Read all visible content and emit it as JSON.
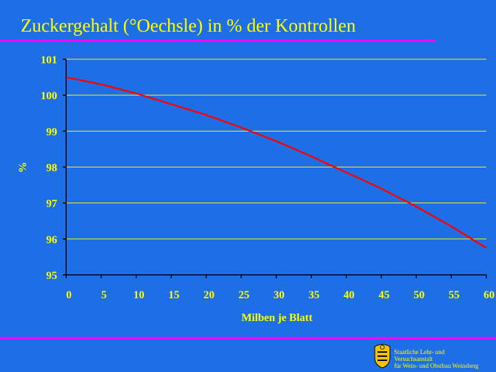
{
  "slide": {
    "title": "Zuckergehalt (°Oechsle) in % der Kontrollen"
  },
  "footer": {
    "line1": "Staatliche Lehr- und",
    "line2": "Versuchsanstalt",
    "line3": "für Wein- und Obstbau Weinsberg"
  },
  "colors": {
    "background": "#1e6fe6",
    "text": "#ffff00",
    "rule": "#ff00ff",
    "line": "#ff0000",
    "axis": "#000000"
  },
  "chart_data": {
    "type": "line",
    "title": "Zuckergehalt (°Oechsle) in % der Kontrollen",
    "xlabel": "Milben je Blatt",
    "ylabel": "%",
    "xlim": [
      0,
      60
    ],
    "ylim": [
      95,
      101
    ],
    "xticks": [
      0,
      5,
      10,
      15,
      20,
      25,
      30,
      35,
      40,
      45,
      50,
      55,
      60
    ],
    "yticks": [
      95,
      96,
      97,
      98,
      99,
      100,
      101
    ],
    "grid": "horizontal",
    "series": [
      {
        "x": [
          0,
          5,
          10,
          15,
          20,
          25,
          30,
          35,
          40,
          45,
          50,
          55,
          60
        ],
        "values": [
          100.5,
          100.3,
          100.05,
          99.75,
          99.45,
          99.1,
          98.72,
          98.3,
          97.85,
          97.4,
          96.9,
          96.35,
          95.75
        ]
      }
    ]
  }
}
